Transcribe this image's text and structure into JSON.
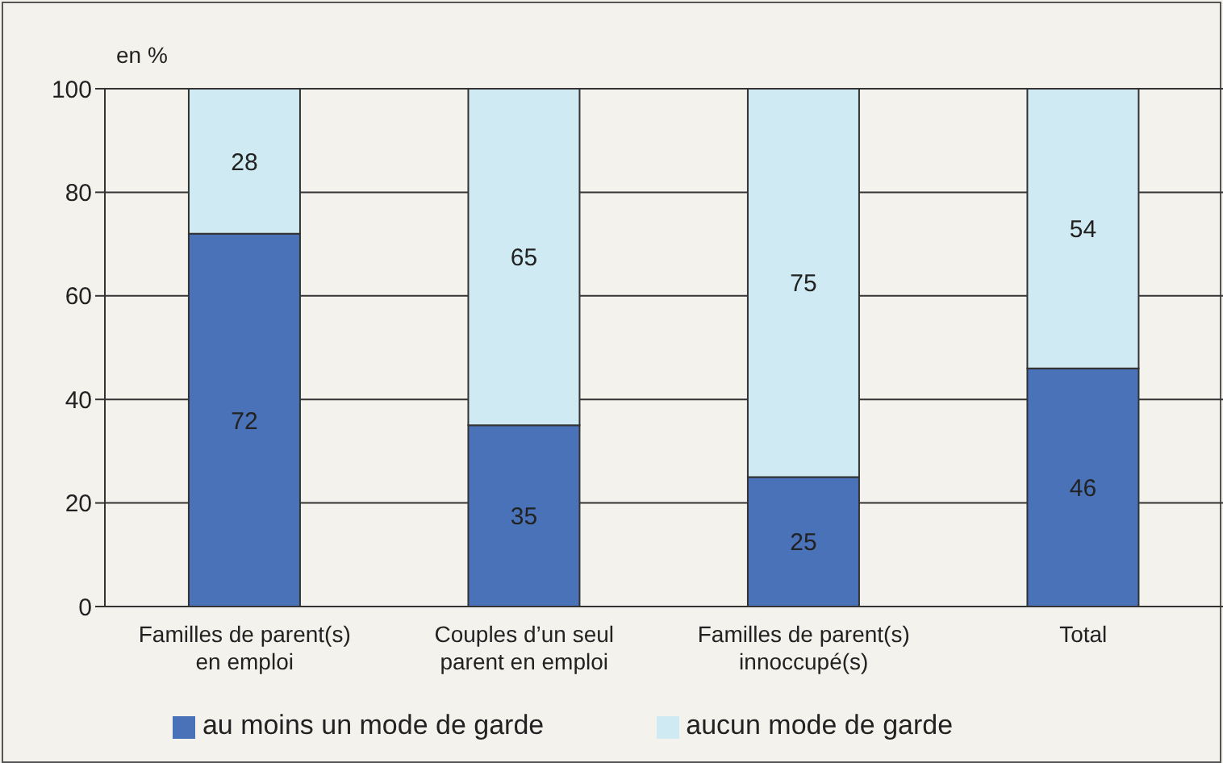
{
  "chart_data": {
    "type": "bar",
    "stacked": true,
    "ylabel": "en %",
    "categories": [
      "Familles de parent(s) en emploi",
      "Couples d’un seul parent en emploi",
      "Familles de parent(s) innoccupé(s)",
      "Total"
    ],
    "series": [
      {
        "name": "au moins un mode de garde",
        "color": "#4a72b8",
        "values": [
          72,
          35,
          25,
          46
        ]
      },
      {
        "name": "aucun mode de garde",
        "color": "#cfeaf2",
        "values": [
          28,
          65,
          75,
          54
        ]
      }
    ],
    "ylim": [
      0,
      100
    ],
    "yticks": [
      0,
      20,
      40,
      60,
      80,
      100
    ],
    "grid": "y",
    "legend": "bottom",
    "data_labels": true
  }
}
